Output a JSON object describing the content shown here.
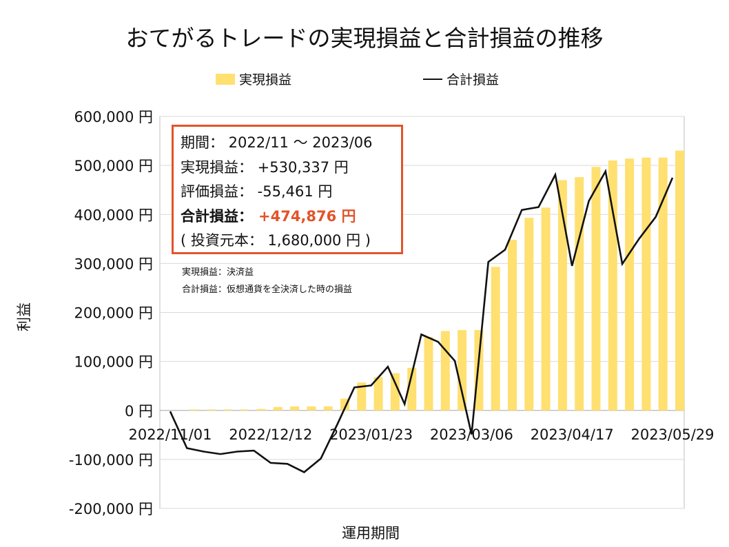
{
  "chart_data": {
    "type": "bar+line",
    "title": "おてがるトレードの実現損益と合計損益の推移",
    "xlabel": "運用期間",
    "ylabel": "利益",
    "ylim": [
      -200000,
      600000
    ],
    "y_ticks": [
      600000,
      500000,
      400000,
      300000,
      200000,
      100000,
      0,
      -100000,
      -200000
    ],
    "y_tick_labels": [
      "600,000 円",
      "500,000 円",
      "400,000 円",
      "300,000 円",
      "200,000 円",
      "100,000 円",
      "0 円",
      "-100,000 円",
      "-200,000 円"
    ],
    "x_tick_labels": [
      {
        "index": 0,
        "label": "2022/11/01"
      },
      {
        "index": 6,
        "label": "2022/12/12"
      },
      {
        "index": 12,
        "label": "2023/01/23"
      },
      {
        "index": 18,
        "label": "2023/03/06"
      },
      {
        "index": 24,
        "label": "2023/04/17"
      },
      {
        "index": 30,
        "label": "2023/05/29"
      }
    ],
    "grid": true,
    "legend": {
      "position": "top-center",
      "bar_label": "実現損益",
      "line_label": "合計損益"
    },
    "series": [
      {
        "name": "実現損益",
        "type": "bar",
        "color": "#ffe070",
        "values": [
          0,
          2000,
          2000,
          2000,
          2000,
          3000,
          7000,
          8000,
          8000,
          8000,
          24000,
          57000,
          68000,
          76000,
          87000,
          150000,
          162000,
          164000,
          164000,
          293000,
          348000,
          393000,
          414000,
          470000,
          476000,
          497000,
          510000,
          514000,
          516000,
          516000,
          530337
        ]
      },
      {
        "name": "合計損益",
        "type": "line",
        "color": "#111111",
        "values": [
          -2000,
          -77000,
          -84000,
          -89000,
          -84000,
          -82000,
          -107000,
          -109000,
          -126000,
          -98000,
          -27000,
          47000,
          51000,
          89000,
          13000,
          155000,
          140000,
          101000,
          -49000,
          303000,
          328000,
          409000,
          415000,
          481000,
          295000,
          427000,
          488000,
          299000,
          350000,
          395000,
          474876
        ]
      }
    ]
  },
  "info_box": {
    "period": "期間： 2022/11 ～ 2023/06",
    "realized": "実現損益： +530,337 円",
    "unrealized": "評価損益： -55,461 円",
    "total_label": "合計損益：",
    "total_value": "+474,876 円",
    "principal": "( 投資元本： 1,680,000 円 )"
  },
  "notes": {
    "realized_def": "実現損益：決済益",
    "total_def": "合計損益：仮想通貨を全決済した時の損益"
  },
  "colors": {
    "bar": "#ffe070",
    "line": "#111111",
    "accent": "#e2542a",
    "grid": "#d9d9d9",
    "axis": "#bfbfbf"
  }
}
